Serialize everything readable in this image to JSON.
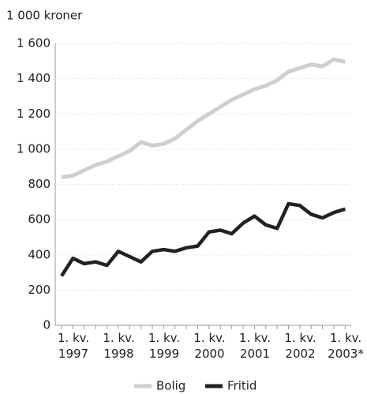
{
  "chart_data": {
    "type": "line",
    "y_label": "1 000 kroner",
    "categories": [
      "1. kv.\n1997",
      null,
      null,
      null,
      "1. kv.\n1998",
      null,
      null,
      null,
      "1. kv.\n1999",
      null,
      null,
      null,
      "1. kv.\n2000",
      null,
      null,
      null,
      "1. kv.\n2001",
      null,
      null,
      null,
      "1. kv.\n2002",
      null,
      null,
      null,
      "1. kv.\n2003*",
      null
    ],
    "series": [
      {
        "name": "Bolig",
        "color": "#cfcfcf",
        "values": [
          840,
          850,
          880,
          910,
          930,
          960,
          990,
          1040,
          1020,
          1030,
          1060,
          1110,
          1160,
          1200,
          1240,
          1280,
          1310,
          1340,
          1360,
          1390,
          1440,
          1460,
          1480,
          1470,
          1510,
          1495
        ]
      },
      {
        "name": "Fritid",
        "color": "#222222",
        "values": [
          280,
          380,
          350,
          360,
          340,
          420,
          390,
          360,
          420,
          430,
          420,
          440,
          450,
          530,
          540,
          520,
          580,
          620,
          570,
          550,
          690,
          680,
          630,
          610,
          640,
          660
        ]
      }
    ],
    "ylim": [
      0,
      1600
    ],
    "yticks": [
      0,
      200,
      400,
      600,
      800,
      {
        "value": 1000,
        "label": "1 000"
      },
      {
        "value": 1200,
        "label": "1 200"
      },
      {
        "value": 1400,
        "label": "1 400"
      },
      {
        "value": 1600,
        "label": "1 600"
      }
    ],
    "grid": true
  }
}
